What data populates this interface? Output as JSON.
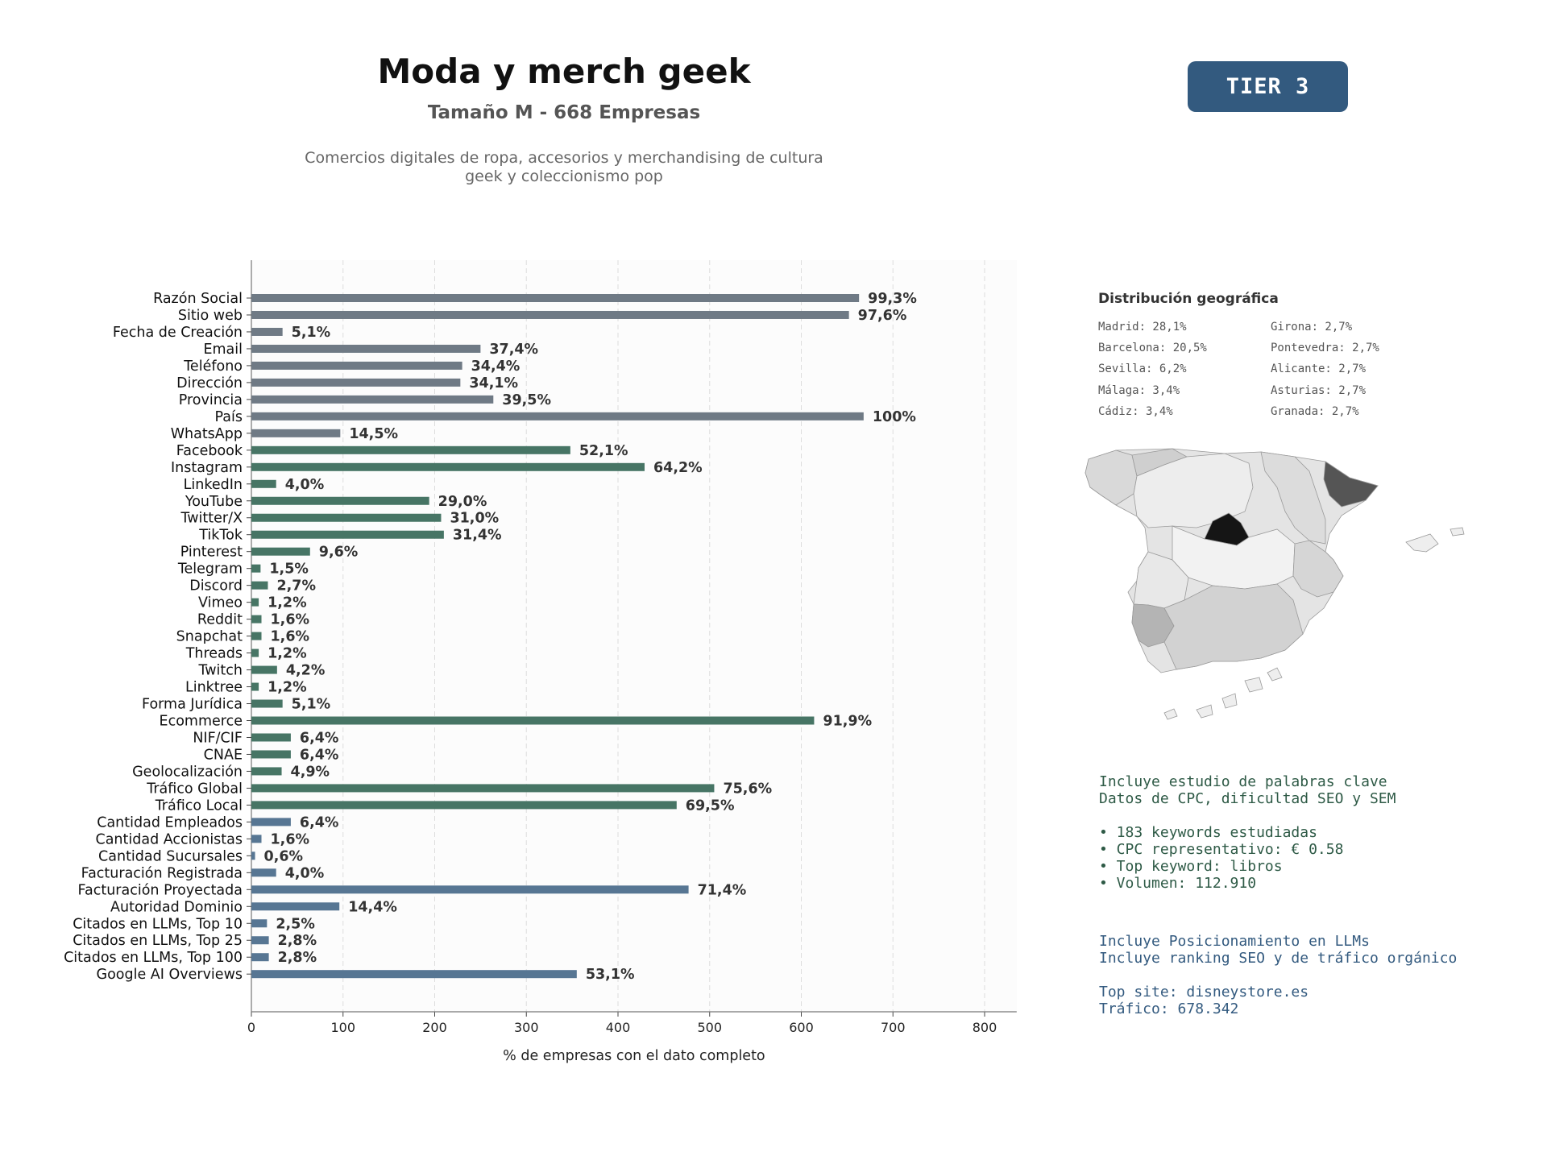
{
  "header": {
    "title": "Moda y merch geek",
    "subtitle": "Tamaño M - 668 Empresas",
    "description_line1": "Comercios digitales de ropa, accesorios y merchandising de cultura",
    "description_line2": "geek y coleccionismo pop",
    "tier": "TIER 3"
  },
  "chart_data": {
    "type": "bar",
    "orientation": "horizontal",
    "xlabel": "% de empresas con el dato completo",
    "xlim": [
      0,
      835
    ],
    "xticks": [
      0,
      100,
      200,
      300,
      400,
      500,
      600,
      700,
      800
    ],
    "grid": "vertical dashed",
    "categories": [
      "Razón Social",
      "Sitio web",
      "Fecha de Creación",
      "Email",
      "Teléfono",
      "Dirección",
      "Provincia",
      "País",
      "WhatsApp",
      "Facebook",
      "Instagram",
      "LinkedIn",
      "YouTube",
      "Twitter/X",
      "TikTok",
      "Pinterest",
      "Telegram",
      "Discord",
      "Vimeo",
      "Reddit",
      "Snapchat",
      "Threads",
      "Twitch",
      "Linktree",
      "Forma Jurídica",
      "Ecommerce",
      "NIF/CIF",
      "CNAE",
      "Geolocalización",
      "Tráfico Global",
      "Tráfico Local",
      "Cantidad Empleados",
      "Cantidad Accionistas",
      "Cantidad Sucursales",
      "Facturación Registrada",
      "Facturación Proyectada",
      "Autoridad Dominio",
      "Citados en LLMs, Top 10",
      "Citados en LLMs, Top 25",
      "Citados en LLMs, Top 100",
      "Google AI Overviews"
    ],
    "values": [
      663,
      652,
      34,
      250,
      230,
      228,
      264,
      668,
      97,
      348,
      429,
      27,
      194,
      207,
      210,
      64,
      10,
      18,
      8,
      11,
      11,
      8,
      28,
      8,
      34,
      614,
      43,
      43,
      33,
      505,
      464,
      43,
      11,
      4,
      27,
      477,
      96,
      17,
      19,
      19,
      355
    ],
    "labels": [
      "99,3%",
      "97,6%",
      "5,1%",
      "37,4%",
      "34,4%",
      "34,1%",
      "39,5%",
      "100%",
      "14,5%",
      "52,1%",
      "64,2%",
      "4,0%",
      "29,0%",
      "31,0%",
      "31,4%",
      "9,6%",
      "1,5%",
      "2,7%",
      "1,2%",
      "1,6%",
      "1,6%",
      "1,2%",
      "4,2%",
      "1,2%",
      "5,1%",
      "91,9%",
      "6,4%",
      "6,4%",
      "4,9%",
      "75,6%",
      "69,5%",
      "6,4%",
      "1,6%",
      "0,6%",
      "4,0%",
      "71,4%",
      "14,4%",
      "2,5%",
      "2,8%",
      "2,8%",
      "53,1%"
    ],
    "groups": [
      "grey",
      "grey",
      "grey",
      "grey",
      "grey",
      "grey",
      "grey",
      "grey",
      "grey",
      "green",
      "green",
      "green",
      "green",
      "green",
      "green",
      "green",
      "green",
      "green",
      "green",
      "green",
      "green",
      "green",
      "green",
      "green",
      "green",
      "green",
      "green",
      "green",
      "green",
      "green",
      "green",
      "blue",
      "blue",
      "blue",
      "blue",
      "blue",
      "blue",
      "blue",
      "blue",
      "blue",
      "blue"
    ],
    "colors": {
      "grey": "#6f7a85",
      "green": "#477565",
      "blue": "#577693"
    }
  },
  "geo": {
    "title": "Distribución geográfica",
    "items": [
      "Madrid: 28,1%",
      "Barcelona: 20,5%",
      "Sevilla: 6,2%",
      "Málaga: 3,4%",
      "Cádiz: 3,4%",
      "Girona: 2,7%",
      "Pontevedra: 2,7%",
      "Alicante: 2,7%",
      "Asturias: 2,7%",
      "Granada: 2,7%"
    ]
  },
  "keywords": {
    "line1": "Incluye estudio de palabras clave",
    "line2": "Datos de CPC, dificultad SEO y SEM",
    "bullet1": "• 183 keywords estudiadas",
    "bullet2": "• CPC representativo: € 0.58",
    "bullet3": "• Top keyword: libros",
    "bullet4": "• Volumen: 112.910"
  },
  "llm": {
    "line1": "Incluye Posicionamiento en LLMs",
    "line2": "Incluye ranking SEO y de tráfico orgánico",
    "line3": "Top site: disneystore.es",
    "line4": "Tráfico: 678.342"
  }
}
